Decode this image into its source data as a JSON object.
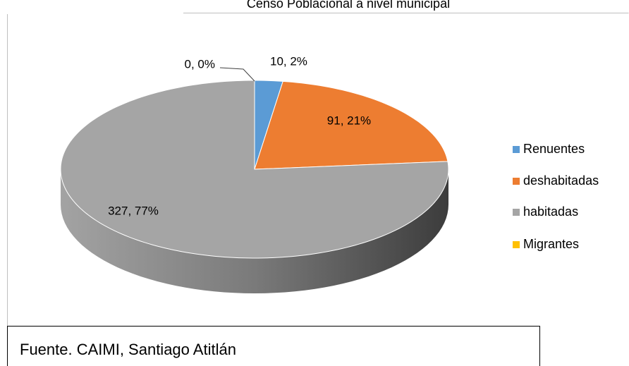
{
  "chart_data": {
    "type": "pie",
    "title": "Censo Poblacional a nivel municipal",
    "categories": [
      "Renuentes",
      "deshabitadas",
      "habitadas",
      "Migrantes"
    ],
    "values": [
      10,
      91,
      327,
      0
    ],
    "value_labels": [
      "10, 2%",
      "91, 21%",
      "327, 77%",
      "0, 0%"
    ],
    "colors": [
      "#5b9bd5",
      "#ed7d31",
      "#a5a5a5",
      "#ffc000"
    ],
    "legend": "right"
  },
  "footer": {
    "text": "Fuente. CAIMI, Santiago Atitlán"
  }
}
